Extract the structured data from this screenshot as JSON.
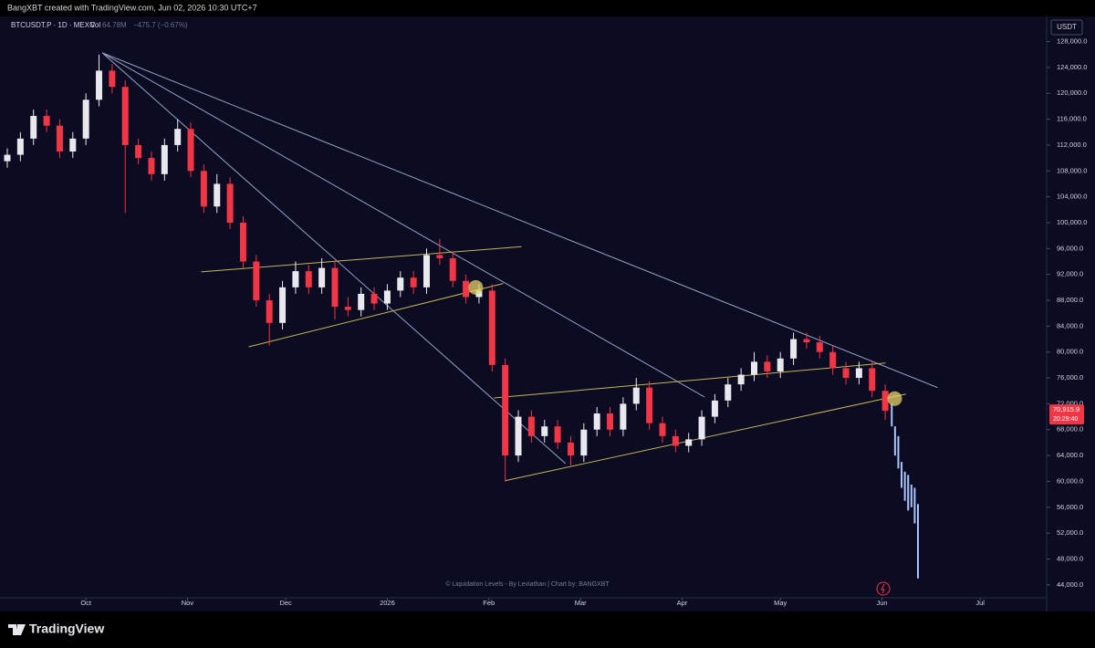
{
  "header": "BangXBT created with TradingView.com, Jun 02, 2026 10:30 UTC+7",
  "brand": "TradingView",
  "chart_data": {
    "type": "candlestick",
    "symbol": "BTCUSDT.P · 1D · MEXC",
    "volume_label": "Vol",
    "volume": "64.78M",
    "change": "−475.7 (−0.67%)",
    "currency": "USDT",
    "watermark": "© Liquidation Levels - By Leviathan | Chart by: BANGXBT",
    "up_color": "#e8e8ee",
    "down_color": "#f23645",
    "grid": false,
    "x": [
      -24,
      -20,
      -16,
      -12,
      -8,
      -4,
      0,
      4,
      8,
      12,
      16,
      20,
      24,
      28,
      32,
      36,
      40,
      44,
      48,
      52,
      56,
      60,
      64,
      68,
      72,
      76,
      80,
      84,
      88,
      92,
      96,
      100,
      104,
      108,
      112,
      116,
      120,
      124,
      128,
      132,
      136,
      140,
      144,
      148,
      152,
      156,
      160,
      164,
      168,
      172,
      176,
      180,
      184,
      188,
      192,
      196,
      200,
      204,
      208,
      212,
      216,
      220,
      224,
      228,
      232,
      236,
      240,
      244
    ],
    "open": [
      109500,
      110500,
      113000,
      116500,
      115000,
      111000,
      113000,
      119000,
      123500,
      121000,
      112000,
      110000,
      107500,
      112000,
      114500,
      108000,
      102500,
      106000,
      100000,
      94000,
      88000,
      84500,
      90000,
      92500,
      90000,
      93000,
      87000,
      86500,
      89000,
      87500,
      89500,
      91500,
      90000,
      95000,
      94500,
      91000,
      88500,
      89500,
      78000,
      64000,
      70000,
      67000,
      68500,
      66000,
      64000,
      68000,
      70500,
      68000,
      72000,
      74500,
      69000,
      67000,
      65500,
      66500,
      70000,
      72500,
      75000,
      76500,
      78500,
      77000,
      79000,
      82000,
      81500,
      80000,
      77500,
      76000,
      77500,
      74000
    ],
    "high": [
      111500,
      114000,
      117500,
      117500,
      116000,
      114000,
      120000,
      126000,
      124500,
      122000,
      113000,
      111000,
      113000,
      116000,
      115500,
      109000,
      107500,
      107000,
      101000,
      95000,
      89000,
      91000,
      94000,
      93500,
      94500,
      94000,
      88500,
      90000,
      90000,
      90500,
      92500,
      92500,
      96000,
      97500,
      95500,
      92000,
      90500,
      90500,
      79000,
      71000,
      71000,
      69500,
      69500,
      67000,
      69000,
      71500,
      71500,
      73000,
      76000,
      75500,
      70000,
      68000,
      67500,
      71000,
      73500,
      76000,
      77500,
      80000,
      79500,
      80000,
      83000,
      83000,
      82500,
      81000,
      78500,
      78500,
      78500,
      75000
    ],
    "low": [
      108500,
      109500,
      112000,
      114000,
      110000,
      110000,
      112000,
      118000,
      120000,
      101500,
      109000,
      106500,
      106500,
      111000,
      107000,
      101500,
      101500,
      99000,
      93000,
      87000,
      81000,
      83500,
      89000,
      89000,
      89000,
      85000,
      85500,
      85500,
      86500,
      86500,
      88500,
      89000,
      89000,
      93500,
      90000,
      87500,
      87500,
      77000,
      60000,
      63000,
      66000,
      66000,
      65000,
      62500,
      63000,
      67000,
      67000,
      67000,
      71000,
      68000,
      66000,
      64500,
      64500,
      65500,
      69000,
      71500,
      74000,
      75500,
      76000,
      76000,
      78000,
      80500,
      79000,
      76500,
      75000,
      75000,
      73000,
      69500
    ],
    "close": [
      110500,
      113000,
      116500,
      115000,
      111000,
      113000,
      119000,
      123500,
      121000,
      112000,
      110000,
      107500,
      112000,
      114500,
      108000,
      102500,
      106000,
      100000,
      94000,
      88000,
      84500,
      90000,
      92500,
      90000,
      93000,
      87000,
      86500,
      89000,
      87500,
      89500,
      91500,
      90000,
      95000,
      94500,
      91000,
      88500,
      89500,
      78000,
      64000,
      70000,
      67000,
      68500,
      66000,
      64000,
      68000,
      70500,
      68000,
      72000,
      74500,
      69000,
      67000,
      65500,
      66500,
      70000,
      72500,
      75000,
      76500,
      78500,
      77000,
      79000,
      82000,
      81500,
      80000,
      77500,
      76000,
      77500,
      74000,
      70915.9
    ],
    "projection": {
      "color": "#a9c4ff",
      "x": [
        246,
        247,
        248,
        249,
        250,
        251,
        252,
        253,
        254
      ],
      "high": [
        72000,
        68500,
        67000,
        63000,
        61500,
        61000,
        59500,
        59000,
        56500
      ],
      "low": [
        68500,
        64000,
        62000,
        59000,
        57000,
        55500,
        56000,
        53500,
        45000
      ]
    },
    "last_price": {
      "value": 70915.9,
      "label": "70,915.9"
    },
    "countdown": "20:29:40",
    "trendlines": [
      {
        "color": "#9aa0c8",
        "x": [
          5,
          260
        ],
        "y": [
          126260,
          74500
        ]
      },
      {
        "color": "#9aa0c8",
        "x": [
          5,
          188.8
        ],
        "y": [
          126260,
          73060
        ]
      },
      {
        "color": "#9aa0c8",
        "x": [
          5,
          146.4
        ],
        "y": [
          126260,
          62760
        ]
      },
      {
        "color": "#c9b458",
        "x": [
          35.2,
          133
        ],
        "y": [
          92400,
          96300
        ]
      },
      {
        "color": "#c9b458",
        "x": [
          49.7,
          127.4
        ],
        "y": [
          80800,
          90600
        ]
      },
      {
        "color": "#c9b458",
        "x": [
          127.9,
          250.3
        ],
        "y": [
          60100,
          73500
        ]
      },
      {
        "color": "#c9b458",
        "x": [
          124.6,
          244.1
        ],
        "y": [
          72900,
          78300
        ]
      }
    ],
    "markers": {
      "color": "#e6d36a",
      "x": [
        119,
        246.9
      ],
      "y": [
        90000,
        72800
      ]
    },
    "xlim": [
      -24,
      293
    ],
    "xticks": [
      {
        "value": 0,
        "label": "Oct"
      },
      {
        "value": 31,
        "label": "Nov"
      },
      {
        "value": 61,
        "label": "Dec"
      },
      {
        "value": 92,
        "label": "2026"
      },
      {
        "value": 123,
        "label": "Feb"
      },
      {
        "value": 151,
        "label": "Mar"
      },
      {
        "value": 182,
        "label": "Apr"
      },
      {
        "value": 212,
        "label": "May"
      },
      {
        "value": 243,
        "label": "Jun"
      },
      {
        "value": 273,
        "label": "Jul"
      }
    ],
    "ylim": [
      42000,
      130900
    ],
    "yticks": [
      {
        "value": 44000,
        "label": "44,000.0"
      },
      {
        "value": 48000,
        "label": "48,000.0"
      },
      {
        "value": 52000,
        "label": "52,000.0"
      },
      {
        "value": 56000,
        "label": "56,000.0"
      },
      {
        "value": 60000,
        "label": "60,000.0"
      },
      {
        "value": 64000,
        "label": "64,000.0"
      },
      {
        "value": 68000,
        "label": "68,000.0"
      },
      {
        "value": 72000,
        "label": "72,000.0"
      },
      {
        "value": 76000,
        "label": "76,000.0"
      },
      {
        "value": 80000,
        "label": "80,000.0"
      },
      {
        "value": 84000,
        "label": "84,000.0"
      },
      {
        "value": 88000,
        "label": "88,000.0"
      },
      {
        "value": 92000,
        "label": "92,000.0"
      },
      {
        "value": 96000,
        "label": "96,000.0"
      },
      {
        "value": 100000,
        "label": "100,000.0"
      },
      {
        "value": 104000,
        "label": "104,000.0"
      },
      {
        "value": 108000,
        "label": "108,000.0"
      },
      {
        "value": 112000,
        "label": "112,000.0"
      },
      {
        "value": 116000,
        "label": "116,000.0"
      },
      {
        "value": 120000,
        "label": "120,000.0"
      },
      {
        "value": 124000,
        "label": "124,000.0"
      },
      {
        "value": 128000,
        "label": "128,000.0"
      }
    ]
  }
}
